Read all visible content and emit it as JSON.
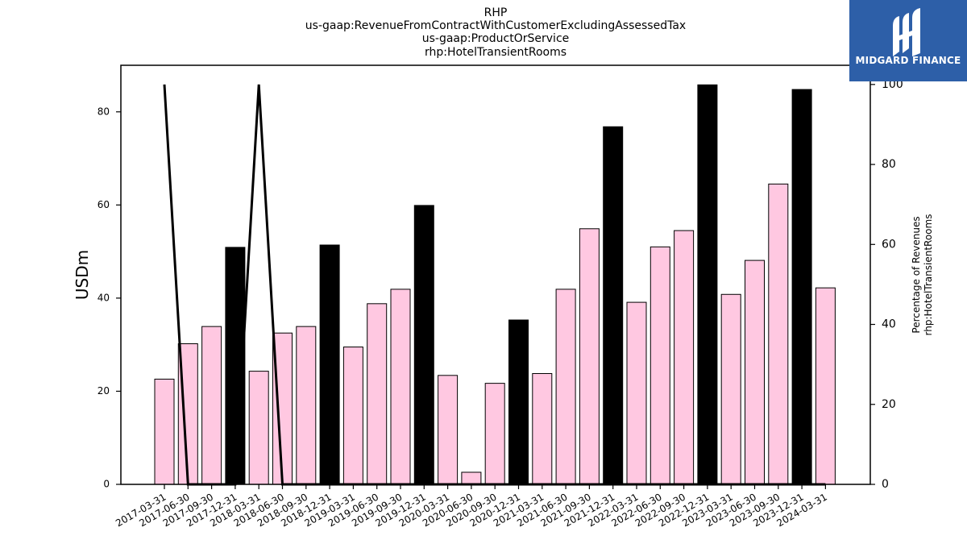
{
  "logo": {
    "text": "MIDGARD FINANCE",
    "icon": "midgard-logo-icon",
    "background": "#2d5fa8"
  },
  "chart_data": {
    "type": "bar",
    "title_lines": [
      "RHP",
      "us-gaap:RevenueFromContractWithCustomerExcludingAssessedTax",
      "us-gaap:ProductOrService",
      "rhp:HotelTransientRooms"
    ],
    "categories": [
      "2017-03-31",
      "2017-06-30",
      "2017-09-30",
      "2017-12-31",
      "2018-03-31",
      "2018-06-30",
      "2018-09-30",
      "2018-12-31",
      "2019-03-31",
      "2019-06-30",
      "2019-09-30",
      "2019-12-31",
      "2020-03-31",
      "2020-06-30",
      "2020-09-30",
      "2020-12-31",
      "2021-03-31",
      "2021-06-30",
      "2021-09-30",
      "2021-12-31",
      "2022-03-31",
      "2022-06-30",
      "2022-09-30",
      "2022-12-31",
      "2023-03-31",
      "2023-06-30",
      "2023-09-30",
      "2023-12-31",
      "2024-03-31"
    ],
    "series": [
      {
        "axis": "left",
        "kind": "bar",
        "values": [
          22.6,
          30.2,
          33.9,
          50.9,
          24.3,
          32.5,
          33.9,
          51.4,
          29.5,
          38.8,
          41.9,
          59.9,
          23.4,
          2.6,
          21.7,
          35.3,
          23.8,
          41.9,
          54.9,
          76.8,
          39.1,
          51.0,
          54.5,
          85.8,
          40.8,
          48.1,
          64.5,
          84.8,
          42.2
        ],
        "colors": [
          "#ffc8e1",
          "#ffc8e1",
          "#ffc8e1",
          "#000000",
          "#ffc8e1",
          "#ffc8e1",
          "#ffc8e1",
          "#000000",
          "#ffc8e1",
          "#ffc8e1",
          "#ffc8e1",
          "#000000",
          "#ffc8e1",
          "#ffc8e1",
          "#ffc8e1",
          "#000000",
          "#ffc8e1",
          "#ffc8e1",
          "#ffc8e1",
          "#000000",
          "#ffc8e1",
          "#ffc8e1",
          "#ffc8e1",
          "#000000",
          "#ffc8e1",
          "#ffc8e1",
          "#ffc8e1",
          "#000000",
          "#ffc8e1"
        ]
      },
      {
        "axis": "right",
        "kind": "line",
        "color": "#000000",
        "values": [
          100,
          0,
          0,
          0,
          100,
          0,
          0,
          0,
          0,
          0,
          0,
          0,
          0,
          0,
          0,
          0,
          0,
          0,
          0,
          0,
          0,
          0,
          0,
          0,
          0,
          0,
          0,
          0,
          0
        ]
      }
    ],
    "ylabel": "USDm",
    "ylabel_right": [
      "Percentage of Revenues",
      "rhp:HotelTransientRooms"
    ],
    "ylim": [
      0,
      90
    ],
    "yticks": [
      0,
      20,
      40,
      60,
      80
    ],
    "ylim_right": [
      0,
      104.8
    ],
    "yticks_right": [
      0,
      20,
      40,
      60,
      80,
      100
    ],
    "grid": false,
    "bar_edge_color": "#000000"
  }
}
